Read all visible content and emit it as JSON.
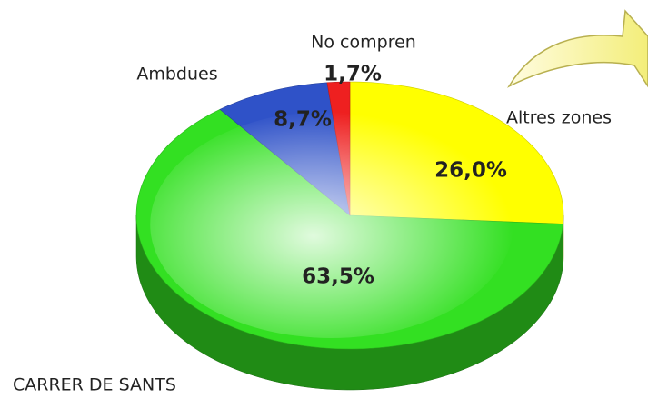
{
  "chart_data": {
    "type": "pie3d",
    "title": "CARRER DE SANTS",
    "categories": [
      "Altres zones",
      "",
      "Ambdues",
      "No compren"
    ],
    "values": [
      26.0,
      63.5,
      8.7,
      1.7
    ],
    "value_labels": [
      "26,0%",
      "63,5%",
      "8,7%",
      "1,7%"
    ],
    "colors": [
      "#ffff00",
      "#33e022",
      "#2f52c8",
      "#ee2020"
    ]
  }
}
